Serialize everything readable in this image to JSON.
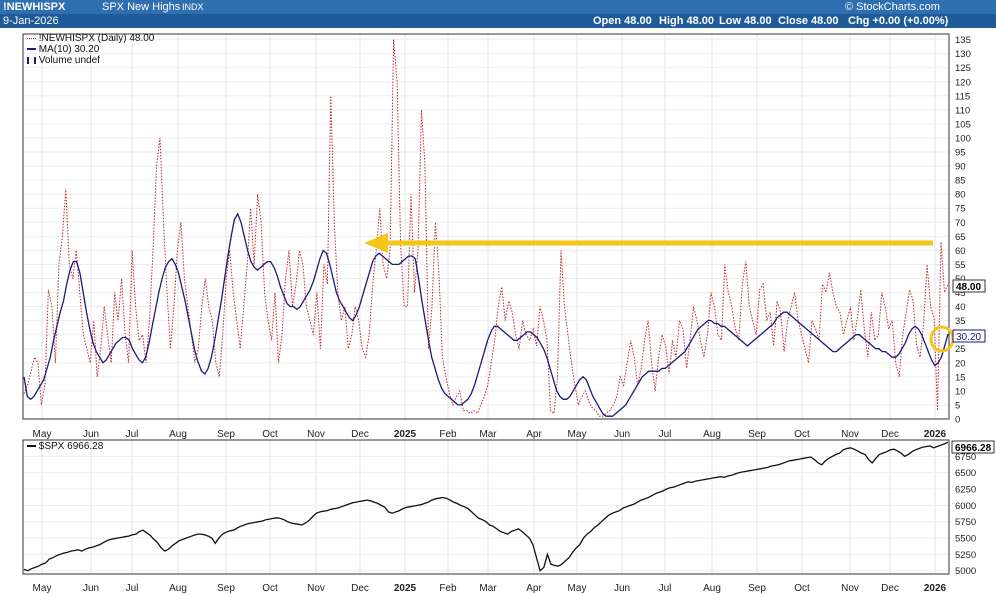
{
  "header": {
    "symbol": "!NEWHISPX",
    "name": "SPX New Highs",
    "exchange": "INDX",
    "credit": "© StockCharts.com",
    "date": "9-Jan-2026",
    "open": "Open 48.00",
    "high": "High 48.00",
    "low": "Low 48.00",
    "close": "Close 48.00",
    "chg": "Chg +0.00 (+0.00%)"
  },
  "chart_data": [
    {
      "type": "line",
      "panel": "top",
      "x_ticks": [
        "May",
        "Jun",
        "Jul",
        "Aug",
        "Sep",
        "Oct",
        "Nov",
        "Dec",
        "2025",
        "Feb",
        "Mar",
        "Apr",
        "May",
        "Jun",
        "Jul",
        "Aug",
        "Sep",
        "Oct",
        "Nov",
        "Dec",
        "2026"
      ],
      "y_ticks": [
        0,
        5,
        10,
        15,
        20,
        25,
        30,
        35,
        40,
        45,
        50,
        55,
        60,
        65,
        70,
        75,
        80,
        85,
        90,
        95,
        100,
        105,
        110,
        115,
        120,
        125,
        130,
        135
      ],
      "ylim": [
        0,
        137
      ],
      "legend": [
        "!NEWHISPX (Daily) 48.00",
        "MA(10) 30.20",
        "Volume undef"
      ],
      "last_value_label": "48.00",
      "ma_value_label": "30.20",
      "series": [
        {
          "name": "!NEWHISPX (Daily)",
          "color": "#c0272d",
          "style": "dotted",
          "values": [
            9,
            12,
            17,
            22,
            20,
            5,
            12,
            46,
            40,
            20,
            55,
            65,
            82,
            55,
            50,
            60,
            45,
            30,
            25,
            20,
            35,
            15,
            25,
            40,
            30,
            20,
            45,
            35,
            50,
            30,
            20,
            60,
            40,
            28,
            30,
            20,
            35,
            60,
            90,
            100,
            70,
            45,
            25,
            40,
            60,
            70,
            50,
            40,
            30,
            20,
            25,
            40,
            50,
            40,
            35,
            20,
            15,
            30,
            50,
            60,
            45,
            35,
            25,
            40,
            55,
            75,
            55,
            80,
            70,
            45,
            35,
            28,
            45,
            20,
            30,
            50,
            60,
            40,
            48,
            60,
            55,
            40,
            35,
            30,
            45,
            25,
            55,
            48,
            115,
            70,
            45,
            35,
            40,
            25,
            30,
            40,
            35,
            25,
            22,
            30,
            48,
            60,
            75,
            55,
            50,
            60,
            135,
            120,
            62,
            40,
            40,
            80,
            45,
            60,
            110,
            90,
            25,
            40,
            70,
            52,
            22,
            15,
            9,
            5,
            8,
            10,
            3,
            3,
            2,
            3,
            2,
            5,
            8,
            12,
            20,
            28,
            40,
            47,
            35,
            42,
            38,
            30,
            25,
            35,
            30,
            28,
            32,
            26,
            40,
            35,
            28,
            3,
            2,
            15,
            60,
            40,
            30,
            20,
            12,
            5,
            8,
            10,
            6,
            4,
            3,
            1,
            1,
            2,
            3,
            5,
            8,
            15,
            12,
            20,
            28,
            22,
            12,
            18,
            28,
            35,
            20,
            10,
            22,
            30,
            26,
            16,
            28,
            22,
            35,
            32,
            18,
            28,
            40,
            35,
            28,
            22,
            30,
            45,
            40,
            30,
            28,
            55,
            45,
            40,
            32,
            28,
            48,
            56,
            40,
            35,
            30,
            46,
            48,
            35,
            38,
            26,
            42,
            38,
            24,
            35,
            40,
            45,
            35,
            30,
            25,
            20,
            35,
            32,
            28,
            48,
            45,
            52,
            45,
            40,
            38,
            30,
            35,
            40,
            28,
            36,
            46,
            32,
            22,
            38,
            28,
            30,
            45,
            40,
            32,
            35,
            20,
            15,
            30,
            38,
            46,
            42,
            26,
            22,
            34,
            55,
            40,
            36,
            3,
            63,
            45,
            48
          ]
        },
        {
          "name": "MA(10)",
          "color": "#1a1a7a",
          "style": "solid",
          "values": [
            15,
            8,
            7,
            8,
            10,
            12,
            14,
            18,
            22,
            28,
            33,
            38,
            42,
            48,
            53,
            56,
            56,
            52,
            45,
            38,
            32,
            27,
            24,
            22,
            20,
            21,
            23,
            25,
            27,
            28,
            29,
            29,
            28,
            25,
            23,
            21,
            20,
            22,
            27,
            33,
            39,
            45,
            50,
            54,
            56,
            57,
            55,
            52,
            47,
            42,
            36,
            30,
            24,
            20,
            17,
            16,
            18,
            22,
            28,
            35,
            42,
            50,
            58,
            65,
            71,
            73,
            70,
            65,
            60,
            56,
            54,
            53,
            54,
            55,
            56,
            56,
            54,
            51,
            47,
            44,
            41,
            40,
            40,
            39,
            40,
            42,
            44,
            46,
            49,
            53,
            57,
            60,
            59,
            55,
            50,
            45,
            42,
            40,
            38,
            36,
            35,
            37,
            40,
            44,
            48,
            52,
            56,
            58,
            59,
            58,
            57,
            56,
            55,
            55,
            55,
            56,
            57,
            58,
            58,
            57,
            50,
            42,
            35,
            28,
            22,
            18,
            14,
            11,
            9,
            8,
            7,
            6,
            5,
            5,
            6,
            7,
            9,
            12,
            16,
            20,
            24,
            28,
            31,
            33,
            33,
            32,
            31,
            30,
            29,
            28,
            28,
            29,
            30,
            31,
            31,
            30,
            29,
            27,
            25,
            22,
            18,
            14,
            10,
            8,
            7,
            7,
            8,
            10,
            12,
            14,
            15,
            14,
            11,
            8,
            6,
            4,
            2,
            1,
            1,
            1,
            2,
            3,
            4,
            5,
            7,
            9,
            11,
            13,
            15,
            16,
            17,
            17,
            17,
            17,
            18,
            18,
            19,
            20,
            21,
            22,
            23,
            24,
            26,
            28,
            30,
            32,
            33,
            34,
            35,
            35,
            34,
            34,
            33,
            33,
            32,
            31,
            30,
            29,
            28,
            27,
            26,
            27,
            28,
            29,
            30,
            31,
            32,
            33,
            34,
            36,
            37,
            38,
            38,
            37,
            36,
            35,
            34,
            33,
            32,
            31,
            30,
            29,
            28,
            27,
            26,
            25,
            24,
            24,
            25,
            26,
            27,
            28,
            29,
            30,
            30,
            29,
            28,
            27,
            26,
            25,
            25,
            24,
            24,
            23,
            22,
            22,
            23,
            25,
            27,
            30,
            32,
            33,
            32,
            30,
            27,
            24,
            21,
            19,
            20,
            22,
            26,
            30.2
          ]
        }
      ]
    },
    {
      "type": "line",
      "panel": "bottom",
      "legend": [
        "$SPX 6966.28"
      ],
      "last_value_label": "6966.28",
      "x_ticks": [
        "May",
        "Jun",
        "Jul",
        "Aug",
        "Sep",
        "Oct",
        "Nov",
        "Dec",
        "2025",
        "Feb",
        "Mar",
        "Apr",
        "May",
        "Jun",
        "Jul",
        "Aug",
        "Sep",
        "Oct",
        "Nov",
        "Dec",
        "2026"
      ],
      "y_ticks": [
        5000,
        5250,
        5500,
        5750,
        6000,
        6250,
        6500,
        6750
      ],
      "ylim": [
        4950,
        7000
      ],
      "series": [
        {
          "name": "$SPX",
          "color": "#111111",
          "style": "solid",
          "values": [
            5020,
            5000,
            5030,
            5050,
            5070,
            5100,
            5120,
            5180,
            5200,
            5230,
            5250,
            5270,
            5280,
            5300,
            5310,
            5320,
            5300,
            5330,
            5350,
            5360,
            5380,
            5400,
            5430,
            5460,
            5480,
            5490,
            5500,
            5510,
            5520,
            5530,
            5550,
            5560,
            5600,
            5620,
            5580,
            5540,
            5480,
            5430,
            5350,
            5300,
            5330,
            5380,
            5420,
            5460,
            5480,
            5500,
            5520,
            5540,
            5560,
            5560,
            5550,
            5530,
            5500,
            5420,
            5500,
            5560,
            5590,
            5610,
            5620,
            5650,
            5680,
            5700,
            5720,
            5730,
            5740,
            5750,
            5760,
            5780,
            5790,
            5800,
            5810,
            5800,
            5780,
            5750,
            5730,
            5720,
            5710,
            5700,
            5730,
            5770,
            5830,
            5880,
            5900,
            5910,
            5920,
            5940,
            5950,
            5960,
            5980,
            6000,
            6020,
            6040,
            6050,
            6060,
            6070,
            6080,
            6070,
            6050,
            6030,
            6000,
            5970,
            5900,
            5880,
            5900,
            5920,
            5950,
            5970,
            5980,
            5990,
            6000,
            6010,
            6030,
            6050,
            6080,
            6100,
            6110,
            6120,
            6110,
            6080,
            6050,
            6030,
            6000,
            5980,
            5950,
            5900,
            5850,
            5800,
            5780,
            5750,
            5700,
            5680,
            5640,
            5600,
            5580,
            5560,
            5600,
            5620,
            5640,
            5600,
            5550,
            5500,
            5400,
            5200,
            5000,
            5050,
            5250,
            5100,
            5080,
            5070,
            5100,
            5150,
            5200,
            5280,
            5350,
            5400,
            5500,
            5560,
            5600,
            5660,
            5700,
            5750,
            5800,
            5850,
            5880,
            5900,
            5920,
            5960,
            5980,
            6000,
            6020,
            6050,
            6080,
            6100,
            6120,
            6150,
            6180,
            6200,
            6220,
            6250,
            6270,
            6280,
            6300,
            6320,
            6340,
            6360,
            6350,
            6370,
            6380,
            6390,
            6400,
            6410,
            6420,
            6430,
            6440,
            6430,
            6450,
            6460,
            6480,
            6500,
            6510,
            6520,
            6530,
            6540,
            6550,
            6560,
            6570,
            6580,
            6600,
            6610,
            6620,
            6640,
            6660,
            6680,
            6690,
            6700,
            6710,
            6720,
            6730,
            6740,
            6700,
            6650,
            6620,
            6680,
            6720,
            6750,
            6780,
            6800,
            6850,
            6870,
            6880,
            6860,
            6830,
            6800,
            6780,
            6700,
            6650,
            6720,
            6780,
            6800,
            6820,
            6850,
            6860,
            6830,
            6800,
            6750,
            6780,
            6820,
            6850,
            6870,
            6890,
            6900,
            6910,
            6880,
            6900,
            6920,
            6940,
            6966.28
          ]
        }
      ]
    }
  ],
  "annotations": {
    "arrow_color": "#f5c518",
    "circle_color": "#f5c518"
  }
}
